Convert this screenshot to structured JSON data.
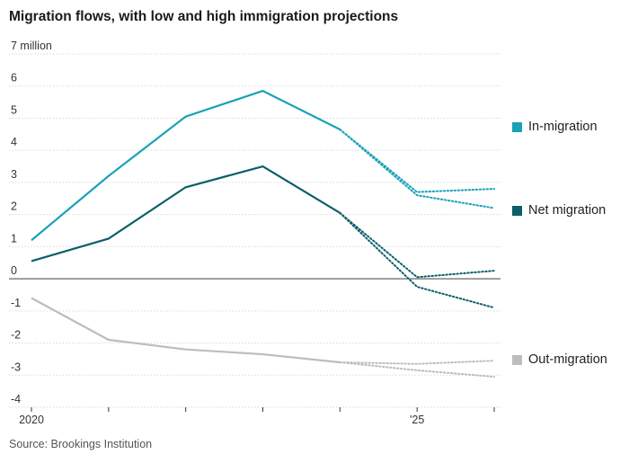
{
  "title": "Migration flows, with low and high immigration projections",
  "source": "Source: Brookings Institution",
  "chart_data": {
    "type": "line",
    "title": "Migration flows, with low and high immigration projections",
    "xlabel": "",
    "ylabel": "",
    "y_unit_label": "7 million",
    "ylim": [
      -4,
      7
    ],
    "yticks": [
      "7 million",
      "6",
      "5",
      "4",
      "3",
      "2",
      "1",
      "0",
      "-1",
      "-2",
      "-3",
      "-4"
    ],
    "x_tick_labels": [
      "2020",
      "'25"
    ],
    "x": [
      2020,
      2021,
      2022,
      2023,
      2024,
      2025,
      2026
    ],
    "grid": true,
    "legend": "right",
    "series": [
      {
        "name": "In-migration",
        "color": "#1aa2b8",
        "actual": [
          [
            2020,
            1.2
          ],
          [
            2021,
            3.2
          ],
          [
            2022,
            5.05
          ],
          [
            2023,
            5.85
          ],
          [
            2024,
            4.65
          ]
        ],
        "projection_high": [
          [
            2024,
            4.65
          ],
          [
            2025,
            2.7
          ],
          [
            2026,
            2.8
          ]
        ],
        "projection_low": [
          [
            2024,
            4.65
          ],
          [
            2025,
            2.6
          ],
          [
            2026,
            2.2
          ]
        ]
      },
      {
        "name": "Net migration",
        "color": "#0c5f68",
        "actual": [
          [
            2020,
            0.55
          ],
          [
            2021,
            1.25
          ],
          [
            2022,
            2.85
          ],
          [
            2023,
            3.5
          ],
          [
            2024,
            2.05
          ]
        ],
        "projection_high": [
          [
            2024,
            2.05
          ],
          [
            2025,
            0.05
          ],
          [
            2026,
            0.25
          ]
        ],
        "projection_low": [
          [
            2024,
            2.05
          ],
          [
            2025,
            -0.25
          ],
          [
            2026,
            -0.9
          ]
        ]
      },
      {
        "name": "Out-migration",
        "color": "#bdbdbd",
        "actual": [
          [
            2020,
            -0.6
          ],
          [
            2021,
            -1.9
          ],
          [
            2022,
            -2.2
          ],
          [
            2023,
            -2.35
          ],
          [
            2024,
            -2.6
          ]
        ],
        "projection_high": [
          [
            2024,
            -2.6
          ],
          [
            2025,
            -2.65
          ],
          [
            2026,
            -2.55
          ]
        ],
        "projection_low": [
          [
            2024,
            -2.6
          ],
          [
            2025,
            -2.85
          ],
          [
            2026,
            -3.05
          ]
        ]
      }
    ]
  }
}
